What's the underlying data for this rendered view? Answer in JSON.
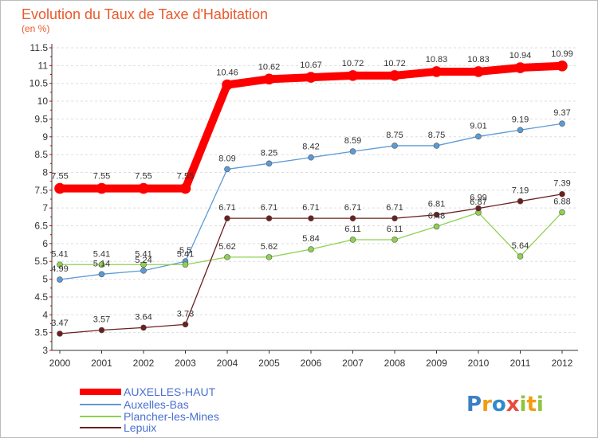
{
  "chart_data": {
    "type": "line",
    "title": "Evolution du Taux de Taxe d'Habitation",
    "subtitle": "(en %)",
    "x": [
      "2000",
      "2001",
      "2002",
      "2003",
      "2004",
      "2005",
      "2006",
      "2007",
      "2008",
      "2009",
      "2010",
      "2011",
      "2012"
    ],
    "ylim": [
      3,
      11.5
    ],
    "yticks": [
      "3",
      "3.5",
      "4",
      "4.5",
      "5",
      "5.5",
      "6",
      "6.5",
      "7",
      "7.5",
      "8",
      "8.5",
      "9",
      "9.5",
      "10",
      "10.5",
      "11",
      "11.5"
    ],
    "grid": "horizontal-dashed",
    "legend_position": "bottom-left",
    "series": [
      {
        "name": "AUXELLES-HAUT",
        "color": "#ff0000",
        "values": [
          7.55,
          7.55,
          7.55,
          7.55,
          10.46,
          10.62,
          10.67,
          10.72,
          10.72,
          10.83,
          10.83,
          10.94,
          10.99
        ],
        "labels": [
          "7.55",
          "7.55",
          "7.55",
          "7.55",
          "10.46",
          "10.62",
          "10.67",
          "10.72",
          "10.72",
          "10.83",
          "10.83",
          "10.94",
          "10.99"
        ]
      },
      {
        "name": "Auxelles-Bas",
        "color": "#5b9bd5",
        "values": [
          4.99,
          5.14,
          5.24,
          5.5,
          8.09,
          8.25,
          8.42,
          8.59,
          8.75,
          8.75,
          9.01,
          9.19,
          9.37
        ],
        "labels": [
          "4.99",
          "5.14",
          "5.24",
          "5.5",
          "8.09",
          "8.25",
          "8.42",
          "8.59",
          "8.75",
          "8.75",
          "9.01",
          "9.19",
          "9.37"
        ]
      },
      {
        "name": "Plancher-les-Mines",
        "color": "#8fd14f",
        "values": [
          5.41,
          5.41,
          5.41,
          5.41,
          5.62,
          5.62,
          5.84,
          6.11,
          6.11,
          6.48,
          6.87,
          5.64,
          6.88
        ],
        "labels": [
          "5.41",
          "5.41",
          "5.41",
          "5.41",
          "5.62",
          "5.62",
          "5.84",
          "6.11",
          "6.11",
          "6.48",
          "6.87",
          "5.64",
          "6.88"
        ]
      },
      {
        "name": "Lepuix",
        "color": "#6b1f1f",
        "values": [
          3.47,
          3.57,
          3.64,
          3.73,
          6.71,
          6.71,
          6.71,
          6.71,
          6.71,
          6.81,
          6.99,
          7.19,
          7.39
        ],
        "labels": [
          "3.47",
          "3.57",
          "3.64",
          "3.73",
          "6.71",
          "6.71",
          "6.71",
          "6.71",
          "6.71",
          "6.81",
          "6.99",
          "7.19",
          "7.39"
        ]
      }
    ]
  },
  "logo": {
    "text": "Proxiti",
    "letters": [
      "P",
      "r",
      "o",
      "x",
      "i",
      "t",
      "i"
    ],
    "colors": [
      "#3b7fc4",
      "#f39c12",
      "#2e8bcc",
      "#e74c3c",
      "#8cc63f",
      "#f39c12",
      "#8cc63f"
    ]
  }
}
